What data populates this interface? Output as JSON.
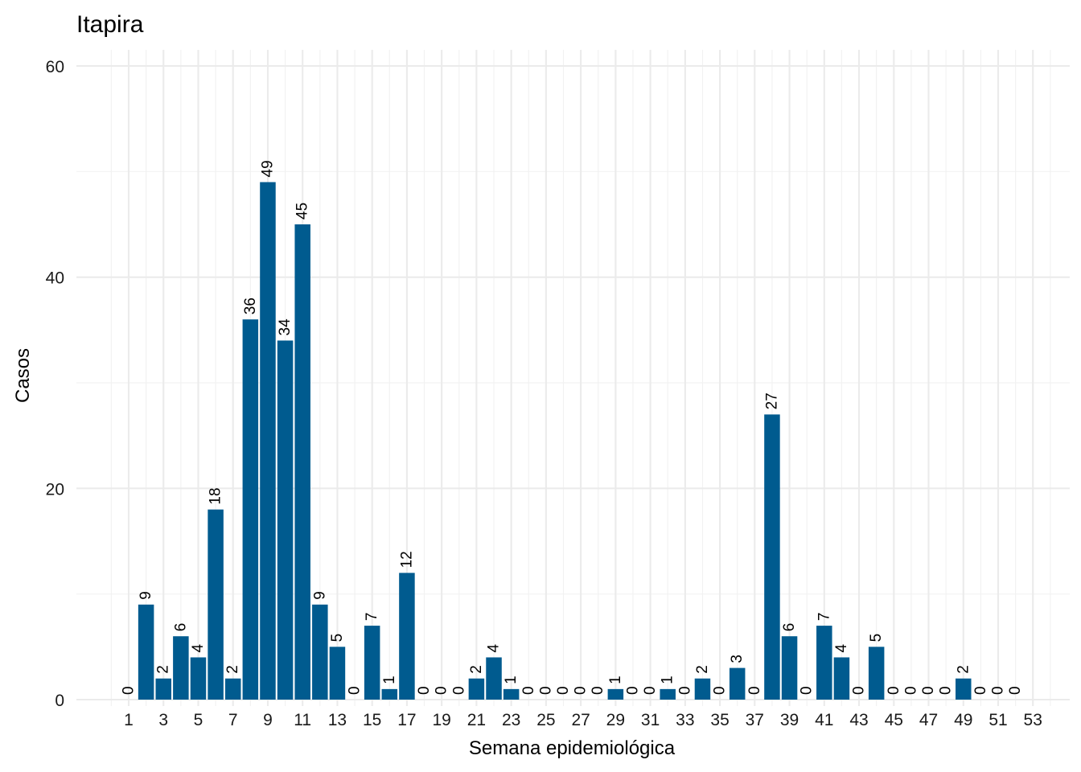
{
  "chart_data": {
    "type": "bar",
    "title": "Itapira",
    "xlabel": "Semana epidemiológica",
    "ylabel": "Casos",
    "ylim": [
      0,
      60
    ],
    "yticks": [
      0,
      20,
      40,
      60
    ],
    "xticks": [
      1,
      3,
      5,
      7,
      9,
      11,
      13,
      15,
      17,
      19,
      21,
      23,
      25,
      27,
      29,
      31,
      33,
      35,
      37,
      39,
      41,
      43,
      45,
      47,
      49,
      51,
      53
    ],
    "x": [
      1,
      2,
      3,
      4,
      5,
      6,
      7,
      8,
      9,
      10,
      11,
      12,
      13,
      14,
      15,
      16,
      17,
      18,
      19,
      20,
      21,
      22,
      23,
      24,
      25,
      26,
      27,
      28,
      29,
      30,
      31,
      32,
      33,
      34,
      35,
      36,
      37,
      38,
      39,
      40,
      41,
      42,
      43,
      44,
      45,
      46,
      47,
      48,
      49,
      50,
      51,
      52,
      53
    ],
    "values": [
      0,
      9,
      2,
      6,
      4,
      18,
      2,
      36,
      49,
      34,
      45,
      9,
      5,
      0,
      7,
      1,
      12,
      0,
      0,
      0,
      2,
      4,
      1,
      0,
      0,
      0,
      0,
      0,
      1,
      0,
      0,
      1,
      0,
      2,
      0,
      3,
      0,
      27,
      6,
      0,
      7,
      4,
      0,
      5,
      0,
      0,
      0,
      0,
      2,
      0,
      0,
      0,
      null
    ],
    "bar_color": "#005b8f",
    "grid": true,
    "legend": "none"
  }
}
